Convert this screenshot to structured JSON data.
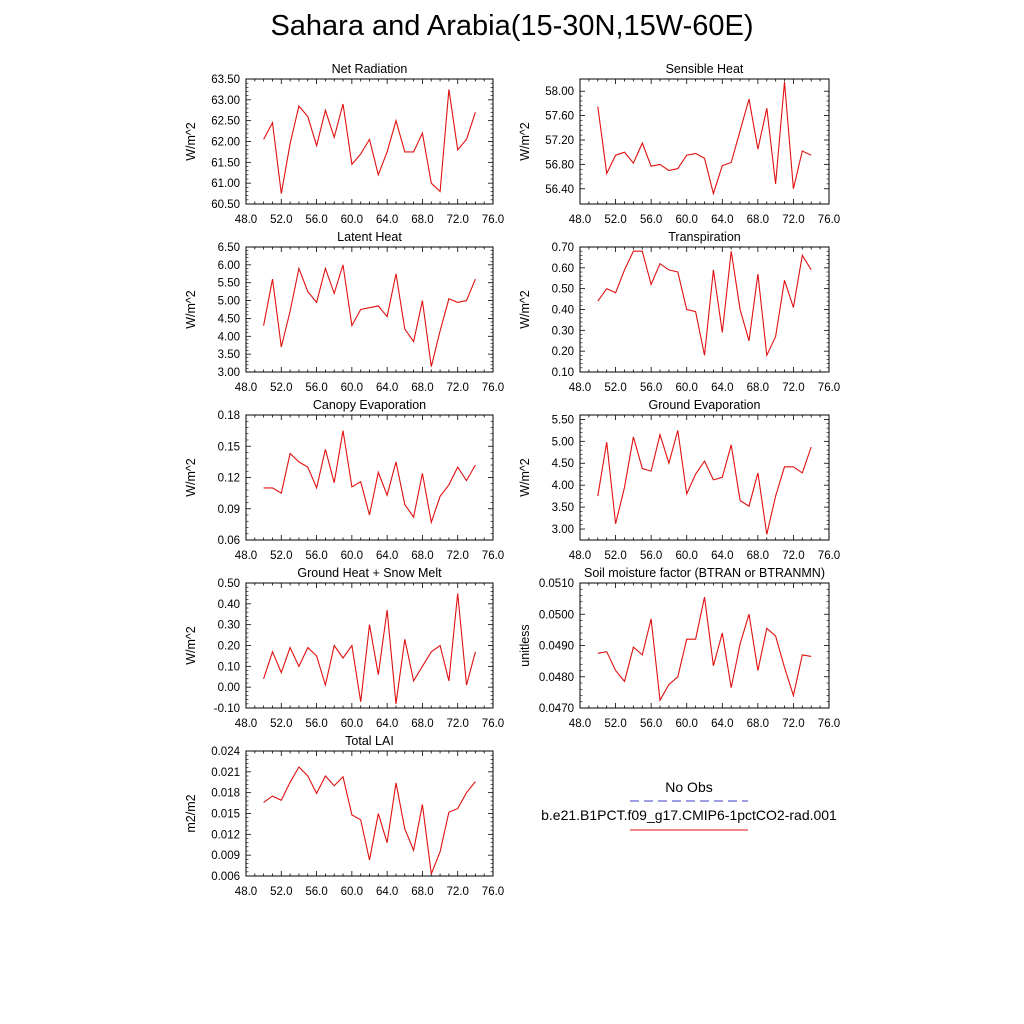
{
  "figure_title": "Sahara and Arabia(15-30N,15W-60E)",
  "legend": {
    "entries": [
      {
        "label": "No Obs",
        "color": "#3c3cc8",
        "dash": true
      },
      {
        "label": "b.e21.B1PCT.f09_g17.CMIP6-1pctCO2-rad.001",
        "color": "#e01010",
        "dash": false
      }
    ]
  },
  "chart_data": [
    {
      "type": "line",
      "title": "Net Radiation",
      "ylabel": "W/m^2",
      "xlim": [
        48,
        76
      ],
      "ylim": [
        60.5,
        63.5
      ],
      "xticks": [
        "48.0",
        "52.0",
        "56.0",
        "60.0",
        "64.0",
        "68.0",
        "72.0",
        "76.0"
      ],
      "yticks": [
        60.5,
        61.0,
        61.5,
        62.0,
        62.5,
        63.0,
        63.5
      ],
      "ytick_labels": [
        "60.50",
        "61.00",
        "61.50",
        "62.00",
        "62.50",
        "63.00",
        "63.50"
      ],
      "series": [
        {
          "color": "#e01010",
          "x": [
            50,
            51,
            52,
            53,
            54,
            55,
            56,
            57,
            58,
            59,
            60,
            61,
            62,
            63,
            64,
            65,
            66,
            67,
            68,
            69,
            70,
            71,
            72,
            73,
            74
          ],
          "y": [
            62.05,
            62.45,
            60.75,
            61.95,
            62.85,
            62.6,
            61.9,
            62.75,
            62.1,
            62.9,
            61.45,
            61.7,
            62.05,
            61.2,
            61.75,
            62.5,
            61.75,
            61.75,
            62.2,
            61.0,
            60.8,
            63.25,
            61.8,
            62.05,
            62.7
          ]
        }
      ]
    },
    {
      "type": "line",
      "title": "Sensible Heat",
      "ylabel": "W/m^2",
      "xlim": [
        48,
        76
      ],
      "ylim": [
        56.15,
        58.2
      ],
      "xticks": [
        "48.0",
        "52.0",
        "56.0",
        "60.0",
        "64.0",
        "68.0",
        "72.0",
        "76.0"
      ],
      "yticks": [
        56.4,
        56.8,
        57.2,
        57.6,
        58.0
      ],
      "ytick_labels": [
        "56.40",
        "56.80",
        "57.20",
        "57.60",
        "58.00"
      ],
      "series": [
        {
          "color": "#e01010",
          "x": [
            50,
            51,
            52,
            53,
            54,
            55,
            56,
            57,
            58,
            59,
            60,
            61,
            62,
            63,
            64,
            65,
            66,
            67,
            68,
            69,
            70,
            71,
            72,
            73,
            74
          ],
          "y": [
            57.75,
            56.65,
            56.95,
            57.0,
            56.82,
            57.15,
            56.77,
            56.8,
            56.7,
            56.73,
            56.95,
            56.98,
            56.9,
            56.32,
            56.78,
            56.83,
            57.35,
            57.87,
            57.05,
            57.72,
            56.48,
            58.15,
            56.4,
            57.02,
            56.95
          ]
        }
      ]
    },
    {
      "type": "line",
      "title": "Latent Heat",
      "ylabel": "W/m^2",
      "xlim": [
        48,
        76
      ],
      "ylim": [
        3.0,
        6.5
      ],
      "xticks": [
        "48.0",
        "52.0",
        "56.0",
        "60.0",
        "64.0",
        "68.0",
        "72.0",
        "76.0"
      ],
      "yticks": [
        3.0,
        3.5,
        4.0,
        4.5,
        5.0,
        5.5,
        6.0,
        6.5
      ],
      "ytick_labels": [
        "3.00",
        "3.50",
        "4.00",
        "4.50",
        "5.00",
        "5.50",
        "6.00",
        "6.50"
      ],
      "series": [
        {
          "color": "#e01010",
          "x": [
            50,
            51,
            52,
            53,
            54,
            55,
            56,
            57,
            58,
            59,
            60,
            61,
            62,
            63,
            64,
            65,
            66,
            67,
            68,
            69,
            70,
            71,
            72,
            73,
            74
          ],
          "y": [
            4.3,
            5.6,
            3.7,
            4.7,
            5.9,
            5.25,
            4.95,
            5.9,
            5.2,
            6.0,
            4.3,
            4.75,
            4.8,
            4.85,
            4.55,
            5.75,
            4.2,
            3.85,
            5.0,
            3.15,
            4.15,
            5.05,
            4.95,
            5.0,
            5.6
          ]
        }
      ]
    },
    {
      "type": "line",
      "title": "Transpiration",
      "ylabel": "W/m^2",
      "xlim": [
        48,
        76
      ],
      "ylim": [
        0.1,
        0.7
      ],
      "xticks": [
        "48.0",
        "52.0",
        "56.0",
        "60.0",
        "64.0",
        "68.0",
        "72.0",
        "76.0"
      ],
      "yticks": [
        0.1,
        0.2,
        0.3,
        0.4,
        0.5,
        0.6,
        0.7
      ],
      "ytick_labels": [
        "0.10",
        "0.20",
        "0.30",
        "0.40",
        "0.50",
        "0.60",
        "0.70"
      ],
      "series": [
        {
          "color": "#e01010",
          "x": [
            50,
            51,
            52,
            53,
            54,
            55,
            56,
            57,
            58,
            59,
            60,
            61,
            62,
            63,
            64,
            65,
            66,
            67,
            68,
            69,
            70,
            71,
            72,
            73,
            74
          ],
          "y": [
            0.44,
            0.5,
            0.48,
            0.59,
            0.68,
            0.68,
            0.52,
            0.62,
            0.59,
            0.58,
            0.4,
            0.39,
            0.18,
            0.59,
            0.29,
            0.68,
            0.4,
            0.25,
            0.57,
            0.18,
            0.27,
            0.54,
            0.41,
            0.66,
            0.59
          ]
        }
      ]
    },
    {
      "type": "line",
      "title": "Canopy Evaporation",
      "ylabel": "W/m^2",
      "xlim": [
        48,
        76
      ],
      "ylim": [
        0.06,
        0.18
      ],
      "xticks": [
        "48.0",
        "52.0",
        "56.0",
        "60.0",
        "64.0",
        "68.0",
        "72.0",
        "76.0"
      ],
      "yticks": [
        0.06,
        0.09,
        0.12,
        0.15,
        0.18
      ],
      "ytick_labels": [
        "0.06",
        "0.09",
        "0.12",
        "0.15",
        "0.18"
      ],
      "series": [
        {
          "color": "#e01010",
          "x": [
            50,
            51,
            52,
            53,
            54,
            55,
            56,
            57,
            58,
            59,
            60,
            61,
            62,
            63,
            64,
            65,
            66,
            67,
            68,
            69,
            70,
            71,
            72,
            73,
            74
          ],
          "y": [
            0.11,
            0.11,
            0.105,
            0.143,
            0.135,
            0.13,
            0.11,
            0.147,
            0.115,
            0.165,
            0.111,
            0.116,
            0.084,
            0.125,
            0.103,
            0.135,
            0.094,
            0.082,
            0.124,
            0.077,
            0.102,
            0.113,
            0.13,
            0.117,
            0.132
          ]
        }
      ]
    },
    {
      "type": "line",
      "title": "Ground Evaporation",
      "ylabel": "W/m^2",
      "xlim": [
        48,
        76
      ],
      "ylim": [
        2.75,
        5.6
      ],
      "xticks": [
        "48.0",
        "52.0",
        "56.0",
        "60.0",
        "64.0",
        "68.0",
        "72.0",
        "76.0"
      ],
      "yticks": [
        3.0,
        3.5,
        4.0,
        4.5,
        5.0,
        5.5
      ],
      "ytick_labels": [
        "3.00",
        "3.50",
        "4.00",
        "4.50",
        "5.00",
        "5.50"
      ],
      "series": [
        {
          "color": "#e01010",
          "x": [
            50,
            51,
            52,
            53,
            54,
            55,
            56,
            57,
            58,
            59,
            60,
            61,
            62,
            63,
            64,
            65,
            66,
            67,
            68,
            69,
            70,
            71,
            72,
            73,
            74
          ],
          "y": [
            3.75,
            4.98,
            3.12,
            3.95,
            5.1,
            4.38,
            4.32,
            5.15,
            4.5,
            5.25,
            3.8,
            4.25,
            4.55,
            4.12,
            4.18,
            4.92,
            3.65,
            3.52,
            4.28,
            2.88,
            3.75,
            4.42,
            4.42,
            4.28,
            4.87
          ]
        }
      ]
    },
    {
      "type": "line",
      "title": "Ground Heat + Snow Melt",
      "ylabel": "W/m^2",
      "xlim": [
        48,
        76
      ],
      "ylim": [
        -0.1,
        0.5
      ],
      "xticks": [
        "48.0",
        "52.0",
        "56.0",
        "60.0",
        "64.0",
        "68.0",
        "72.0",
        "76.0"
      ],
      "yticks": [
        -0.1,
        0.0,
        0.1,
        0.2,
        0.3,
        0.4,
        0.5
      ],
      "ytick_labels": [
        "-0.10",
        "0.00",
        "0.10",
        "0.20",
        "0.30",
        "0.40",
        "0.50"
      ],
      "series": [
        {
          "color": "#e01010",
          "x": [
            50,
            51,
            52,
            53,
            54,
            55,
            56,
            57,
            58,
            59,
            60,
            61,
            62,
            63,
            64,
            65,
            66,
            67,
            68,
            69,
            70,
            71,
            72,
            73,
            74
          ],
          "y": [
            0.04,
            0.17,
            0.07,
            0.19,
            0.1,
            0.19,
            0.15,
            0.01,
            0.2,
            0.14,
            0.2,
            -0.07,
            0.3,
            0.06,
            0.37,
            -0.08,
            0.23,
            0.03,
            0.1,
            0.17,
            0.2,
            0.03,
            0.45,
            0.01,
            0.17
          ]
        }
      ]
    },
    {
      "type": "line",
      "title": "Soil moisture factor (BTRAN or BTRANMN)",
      "ylabel": "unitless",
      "xlim": [
        48,
        76
      ],
      "ylim": [
        0.047,
        0.051
      ],
      "xticks": [
        "48.0",
        "52.0",
        "56.0",
        "60.0",
        "64.0",
        "68.0",
        "72.0",
        "76.0"
      ],
      "yticks": [
        0.047,
        0.048,
        0.049,
        0.05,
        0.051
      ],
      "ytick_labels": [
        "0.0470",
        "0.0480",
        "0.0490",
        "0.0500",
        "0.0510"
      ],
      "series": [
        {
          "color": "#e01010",
          "x": [
            50,
            51,
            52,
            53,
            54,
            55,
            56,
            57,
            58,
            59,
            60,
            61,
            62,
            63,
            64,
            65,
            66,
            67,
            68,
            69,
            70,
            71,
            72,
            73,
            74
          ],
          "y": [
            0.04875,
            0.0488,
            0.0482,
            0.04785,
            0.04895,
            0.0487,
            0.04985,
            0.04725,
            0.04775,
            0.048,
            0.0492,
            0.0492,
            0.05055,
            0.04835,
            0.0494,
            0.04765,
            0.04905,
            0.05,
            0.0482,
            0.04955,
            0.0493,
            0.0483,
            0.0474,
            0.0487,
            0.04865
          ]
        }
      ]
    },
    {
      "type": "line",
      "title": "Total LAI",
      "ylabel": "m2/m2",
      "xlim": [
        48,
        76
      ],
      "ylim": [
        0.006,
        0.024
      ],
      "xticks": [
        "48.0",
        "52.0",
        "56.0",
        "60.0",
        "64.0",
        "68.0",
        "72.0",
        "76.0"
      ],
      "yticks": [
        0.006,
        0.009,
        0.012,
        0.015,
        0.018,
        0.021,
        0.024
      ],
      "ytick_labels": [
        "0.006",
        "0.009",
        "0.012",
        "0.015",
        "0.018",
        "0.021",
        "0.024"
      ],
      "series": [
        {
          "color": "#e01010",
          "x": [
            50,
            51,
            52,
            53,
            54,
            55,
            56,
            57,
            58,
            59,
            60,
            61,
            62,
            63,
            64,
            65,
            66,
            67,
            68,
            69,
            70,
            71,
            72,
            73,
            74
          ],
          "y": [
            0.0166,
            0.0175,
            0.0169,
            0.0195,
            0.0217,
            0.0204,
            0.0179,
            0.0204,
            0.019,
            0.0203,
            0.0148,
            0.0141,
            0.0083,
            0.015,
            0.0108,
            0.0194,
            0.0128,
            0.0097,
            0.0163,
            0.0063,
            0.0095,
            0.0152,
            0.0157,
            0.018,
            0.0196
          ]
        }
      ]
    }
  ]
}
